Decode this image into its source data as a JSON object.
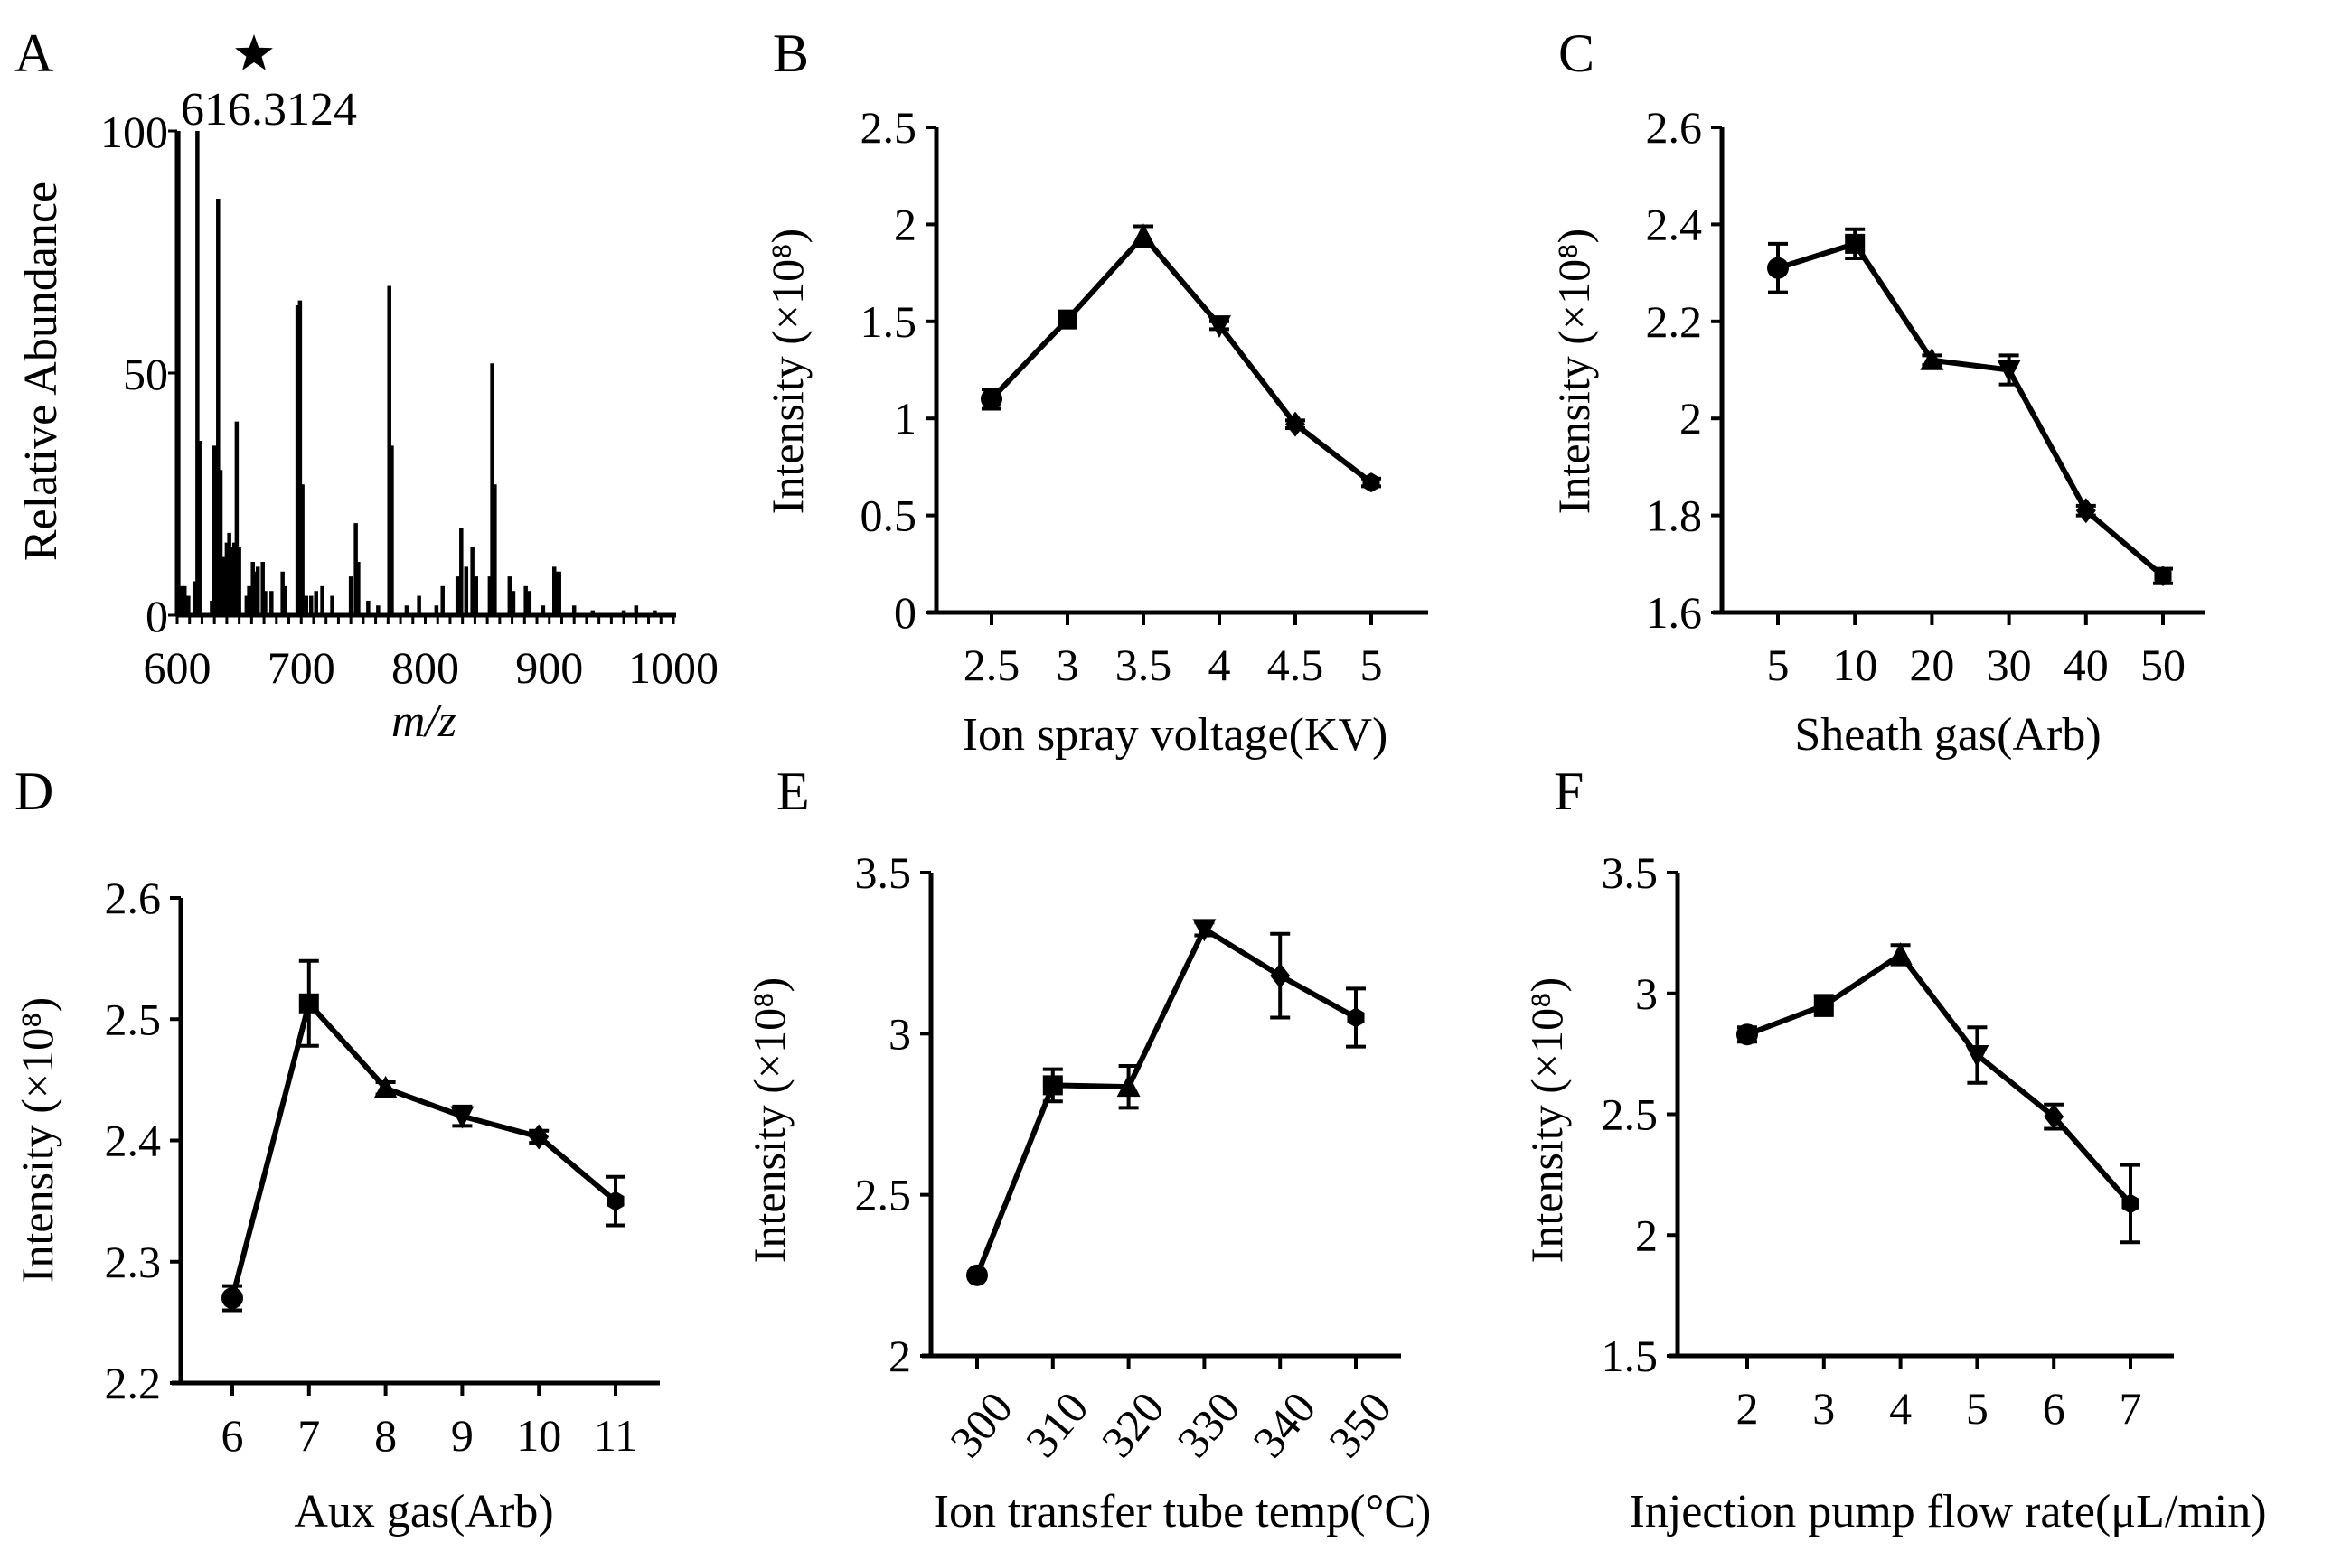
{
  "chart_data": [
    {
      "panel": "A",
      "type": "bar",
      "subtype": "mass-spectrum",
      "xlabel": "m/z",
      "ylabel": "Relative Abundance",
      "xlim": [
        600,
        1000
      ],
      "ylim": [
        0,
        100
      ],
      "xticks": [
        "600",
        "700",
        "800",
        "900",
        "1000"
      ],
      "xtick_values": [
        600,
        700,
        800,
        900,
        1000
      ],
      "yticks": [
        "0",
        "50",
        "100"
      ],
      "ytick_values": [
        0,
        50,
        100
      ],
      "annotation": "616.3124",
      "annotation_marker": "star",
      "peaks": [
        [
          601,
          100
        ],
        [
          604,
          6
        ],
        [
          606,
          6
        ],
        [
          609,
          4
        ],
        [
          614,
          7
        ],
        [
          616.3,
          100
        ],
        [
          618,
          36
        ],
        [
          628,
          3
        ],
        [
          630,
          35
        ],
        [
          631,
          34
        ],
        [
          633,
          86
        ],
        [
          635,
          30
        ],
        [
          638,
          12
        ],
        [
          640,
          15
        ],
        [
          642,
          17
        ],
        [
          644,
          14
        ],
        [
          646,
          15
        ],
        [
          648,
          40
        ],
        [
          650,
          14
        ],
        [
          656,
          4
        ],
        [
          658,
          6
        ],
        [
          661,
          11
        ],
        [
          663,
          9
        ],
        [
          665,
          10
        ],
        [
          669,
          11
        ],
        [
          671,
          5
        ],
        [
          676,
          5
        ],
        [
          685,
          9
        ],
        [
          687,
          6
        ],
        [
          697,
          64
        ],
        [
          699,
          65
        ],
        [
          701,
          27
        ],
        [
          704,
          4
        ],
        [
          708,
          4
        ],
        [
          712,
          5
        ],
        [
          717,
          6
        ],
        [
          725,
          4
        ],
        [
          740,
          8
        ],
        [
          744,
          19
        ],
        [
          746,
          11
        ],
        [
          754,
          3
        ],
        [
          762,
          2
        ],
        [
          771,
          68
        ],
        [
          773,
          35
        ],
        [
          785,
          2
        ],
        [
          795,
          4
        ],
        [
          809,
          2
        ],
        [
          814,
          6
        ],
        [
          826,
          8
        ],
        [
          829,
          18
        ],
        [
          833,
          10
        ],
        [
          838,
          14
        ],
        [
          841,
          8
        ],
        [
          852,
          8
        ],
        [
          854,
          52
        ],
        [
          856,
          27
        ],
        [
          868,
          8
        ],
        [
          871,
          5
        ],
        [
          881,
          6
        ],
        [
          884,
          5
        ],
        [
          895,
          2
        ],
        [
          904,
          10
        ],
        [
          906,
          9
        ],
        [
          908,
          9
        ],
        [
          920,
          2
        ],
        [
          935,
          1
        ],
        [
          960,
          1
        ],
        [
          970,
          2
        ],
        [
          985,
          1
        ]
      ]
    },
    {
      "panel": "B",
      "type": "line",
      "xlabel": "Ion spray voltage(KV)",
      "ylabel": "Intensity (×10⁸)",
      "categories": [
        "2.5",
        "3",
        "3.5",
        "4",
        "4.5",
        "5"
      ],
      "values": [
        1.1,
        1.51,
        1.94,
        1.48,
        0.97,
        0.67
      ],
      "errors": [
        0.05,
        0.02,
        0.05,
        0.02,
        0.02,
        0.02
      ],
      "ylim": [
        0,
        2.5
      ],
      "yticks": [
        "0",
        "0.5",
        "1",
        "1.5",
        "2",
        "2.5"
      ],
      "ytick_values": [
        0,
        0.5,
        1,
        1.5,
        2,
        2.5
      ],
      "xtick_rotation": 0
    },
    {
      "panel": "C",
      "type": "line",
      "xlabel": "Sheath gas(Arb)",
      "ylabel": "Intensity (×10⁸)",
      "categories": [
        "5",
        "10",
        "20",
        "30",
        "40",
        "50"
      ],
      "values": [
        2.31,
        2.36,
        2.12,
        2.1,
        1.81,
        1.675
      ],
      "errors": [
        0.05,
        0.03,
        0.01,
        0.03,
        0.01,
        0.015
      ],
      "ylim": [
        1.6,
        2.6
      ],
      "yticks": [
        "1.6",
        "1.8",
        "2",
        "2.2",
        "2.4",
        "2.6"
      ],
      "ytick_values": [
        1.6,
        1.8,
        2.0,
        2.2,
        2.4,
        2.6
      ],
      "xtick_rotation": 0
    },
    {
      "panel": "D",
      "type": "line",
      "xlabel": "Aux gas(Arb)",
      "ylabel": "Intensity (×10⁸)",
      "categories": [
        "6",
        "7",
        "8",
        "9",
        "10",
        "11"
      ],
      "values": [
        2.27,
        2.513,
        2.443,
        2.42,
        2.403,
        2.35
      ],
      "errors": [
        0.01,
        0.035,
        0.005,
        0.008,
        0.005,
        0.02
      ],
      "ylim": [
        2.2,
        2.6
      ],
      "yticks": [
        "2.2",
        "2.3",
        "2.4",
        "2.5",
        "2.6"
      ],
      "ytick_values": [
        2.2,
        2.3,
        2.4,
        2.5,
        2.6
      ],
      "xtick_rotation": 0
    },
    {
      "panel": "E",
      "type": "line",
      "xlabel": "Ion transfer tube temp(°C)",
      "ylabel": "Intensity (×10⁸)",
      "categories": [
        "300",
        "310",
        "320",
        "330",
        "340",
        "350"
      ],
      "values": [
        2.25,
        2.84,
        2.835,
        3.325,
        3.18,
        3.05
      ],
      "errors": [
        0.01,
        0.05,
        0.065,
        0.02,
        0.13,
        0.09
      ],
      "ylim": [
        2,
        3.5
      ],
      "yticks": [
        "2",
        "2.5",
        "3",
        "3.5"
      ],
      "ytick_values": [
        2,
        2.5,
        3,
        3.5
      ],
      "xtick_rotation": -50
    },
    {
      "panel": "F",
      "type": "line",
      "xlabel": "Injection pump flow rate(μL/min)",
      "ylabel": "Intensity (×10⁸)",
      "categories": [
        "2",
        "3",
        "4",
        "5",
        "6",
        "7"
      ],
      "values": [
        2.83,
        2.95,
        3.16,
        2.745,
        2.49,
        2.13
      ],
      "errors": [
        0.03,
        0.04,
        0.04,
        0.115,
        0.05,
        0.16
      ],
      "ylim": [
        1.5,
        3.5
      ],
      "yticks": [
        "1.5",
        "2",
        "2.5",
        "3",
        "3.5"
      ],
      "ytick_values": [
        1.5,
        2,
        2.5,
        3,
        3.5
      ],
      "xtick_rotation": 0
    }
  ],
  "marker_order": [
    "circle",
    "square",
    "triangle-up",
    "triangle-down",
    "diamond",
    "hexagon"
  ],
  "line_color": "#000000"
}
